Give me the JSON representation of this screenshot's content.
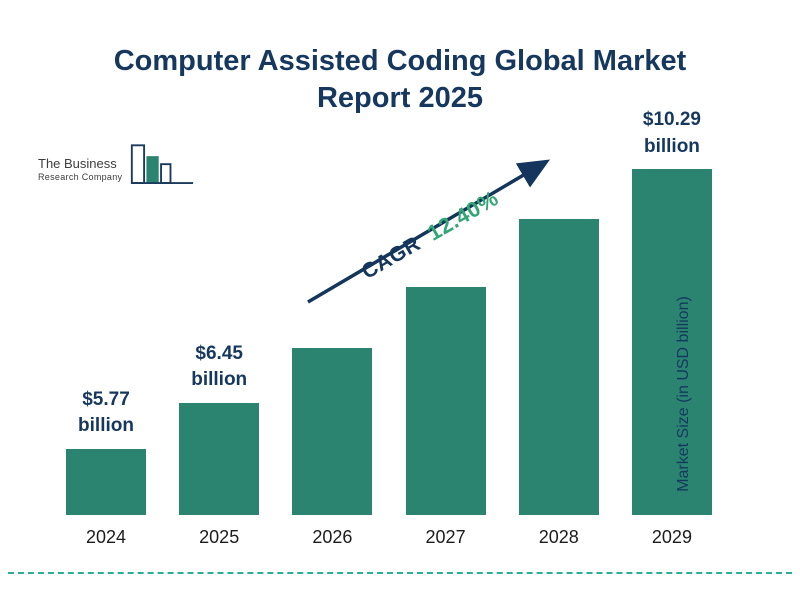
{
  "header": {
    "title": "Computer Assisted Coding Global Market Report 2025"
  },
  "logo": {
    "line1": "The Business",
    "line2": "Research Company"
  },
  "chart_data": {
    "type": "bar",
    "title": "Computer Assisted Coding Global Market Report 2025",
    "categories": [
      "2024",
      "2025",
      "2026",
      "2027",
      "2028",
      "2029"
    ],
    "values": [
      5.77,
      6.45,
      7.25,
      8.15,
      9.16,
      10.29
    ],
    "value_labels": [
      {
        "amount": "$5.77",
        "unit": "billion"
      },
      {
        "amount": "$6.45",
        "unit": "billion"
      },
      null,
      null,
      null,
      {
        "amount": "$10.29",
        "unit": "billion"
      }
    ],
    "xlabel": "",
    "ylabel": "Market Size (in USD billion)",
    "ylim": [
      4.8,
      10.8
    ],
    "grid": false,
    "legend": "none",
    "annotation": {
      "label": "CAGR",
      "value": "12.40%"
    }
  },
  "colors": {
    "title": "#16385F",
    "bar": "#2A8470",
    "accent_green": "#34A574",
    "arrow": "#14365C",
    "dashed_line": "#2BAE94"
  }
}
